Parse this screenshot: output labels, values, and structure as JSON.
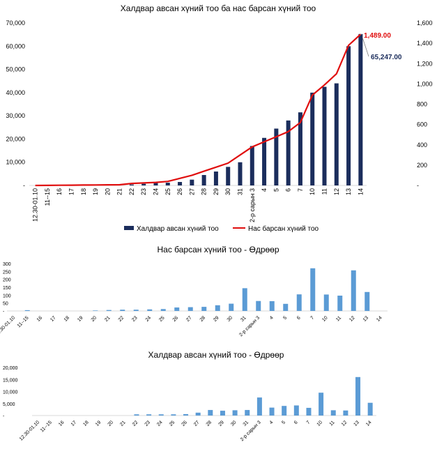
{
  "chart_data": [
    {
      "type": "bar+line",
      "title": "Халдвар авсан хүний тоо ба нас барсан хүний тоо",
      "categories": [
        "12.30-01.10",
        "11--15",
        "16",
        "17",
        "18",
        "19",
        "20",
        "21",
        "22",
        "23",
        "24",
        "25",
        "26",
        "27",
        "28",
        "29",
        "30",
        "31",
        "2-р сарын 3",
        "4",
        "5",
        "6",
        "7",
        "10",
        "11",
        "12",
        "13",
        "14"
      ],
      "series": [
        {
          "name": "Халдвар авсан хүний тоо",
          "kind": "bar",
          "axis": "left",
          "values": [
            0,
            0,
            0,
            0,
            0,
            0,
            0,
            0,
            400,
            700,
            1100,
            1200,
            1500,
            2500,
            4500,
            6000,
            8000,
            10000,
            17000,
            20500,
            24500,
            28000,
            31500,
            40000,
            42500,
            44000,
            60000,
            65247
          ]
        },
        {
          "name": "Нас барсан хүний тоо",
          "kind": "line",
          "axis": "right",
          "values": [
            0,
            1,
            2,
            3,
            4,
            5,
            6,
            7,
            20,
            25,
            30,
            40,
            70,
            100,
            140,
            180,
            220,
            300,
            380,
            430,
            480,
            530,
            620,
            890,
            990,
            1100,
            1380,
            1489
          ]
        }
      ],
      "y_left": {
        "min": 0,
        "max": 70000,
        "ticks": [
          "-",
          "10,000",
          "20,000",
          "30,000",
          "40,000",
          "50,000",
          "60,000",
          "70,000"
        ]
      },
      "y_right": {
        "min": 0,
        "max": 1600,
        "ticks": [
          "-",
          "200",
          "400",
          "600",
          "800",
          "1,000",
          "1,200",
          "1,400",
          "1,600"
        ]
      },
      "annotations": {
        "deaths_last": "1,489.00",
        "cases_last": "65,247.00"
      },
      "legend": "bottom"
    },
    {
      "type": "bar",
      "title": "Нас барсан хүний  тоо -  Өдрөөр",
      "categories": [
        "12.30-01.10",
        "11--15",
        "16",
        "17",
        "18",
        "19",
        "20",
        "21",
        "22",
        "23",
        "24",
        "25",
        "26",
        "27",
        "28",
        "29",
        "30",
        "31",
        "2-р сарын 3",
        "4",
        "5",
        "6",
        "7",
        "10",
        "11",
        "12",
        "13",
        "14"
      ],
      "values": [
        0,
        5,
        0,
        0,
        0,
        0,
        3,
        6,
        8,
        8,
        10,
        12,
        22,
        24,
        26,
        36,
        46,
        144,
        63,
        62,
        45,
        105,
        270,
        104,
        97,
        257,
        120,
        0
      ],
      "ylim": [
        0,
        300
      ],
      "y_ticks": [
        "-",
        "50",
        "100",
        "150",
        "200",
        "250",
        "300"
      ]
    },
    {
      "type": "bar",
      "title": "Халдвар авсан хүний тоо -  Өдрөөр",
      "categories": [
        "12.30-01.10",
        "11--15",
        "16",
        "17",
        "18",
        "19",
        "20",
        "21",
        "22",
        "23",
        "24",
        "25",
        "26",
        "27",
        "28",
        "29",
        "30",
        "31",
        "2-р сарын 3",
        "4",
        "5",
        "6",
        "7",
        "10",
        "11",
        "12",
        "13",
        "14"
      ],
      "values": [
        0,
        0,
        0,
        0,
        0,
        0,
        0,
        0,
        500,
        500,
        500,
        500,
        600,
        1200,
        2300,
        2000,
        2200,
        2300,
        7500,
        3300,
        4000,
        4200,
        3200,
        9500,
        2200,
        2100,
        16000,
        5300
      ],
      "ylim": [
        0,
        20000
      ],
      "y_ticks": [
        "-",
        "5,000",
        "10,000",
        "15,000",
        "20,000"
      ]
    }
  ],
  "colors": {
    "bar_navy": "#1b2d5c",
    "line_red": "#e00e0e",
    "bar_blue": "#5b9bd5",
    "axis": "#d9d9d9"
  }
}
